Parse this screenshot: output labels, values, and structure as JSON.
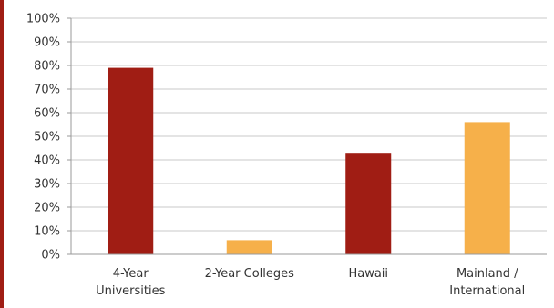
{
  "accent_border_color": "#a01d14",
  "chart_data": {
    "type": "bar",
    "title": "",
    "xlabel": "",
    "ylabel": "",
    "ylim": [
      0,
      100
    ],
    "y_ticks": [
      "0%",
      "10%",
      "20%",
      "30%",
      "40%",
      "50%",
      "60%",
      "70%",
      "80%",
      "90%",
      "100%"
    ],
    "categories": [
      [
        "4-Year",
        "Universities"
      ],
      [
        "2-Year Colleges"
      ],
      [
        "Hawaii"
      ],
      [
        "Mainland /",
        "International"
      ]
    ],
    "values": [
      79,
      6,
      43,
      56
    ],
    "bar_colors": [
      "#a01d14",
      "#f6b04a",
      "#a01d14",
      "#f6b04a"
    ],
    "grid": true,
    "legend": "none"
  }
}
